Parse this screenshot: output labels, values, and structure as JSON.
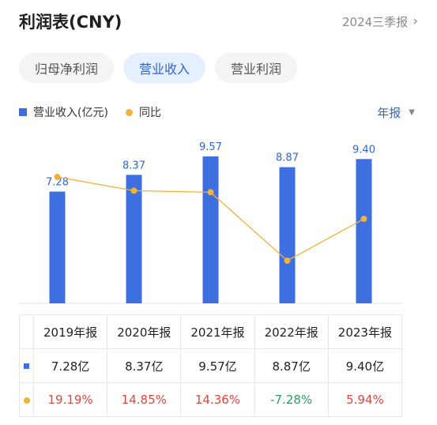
{
  "header": {
    "title": "利润表(CNY)",
    "period": "2024三季报"
  },
  "tabs": [
    {
      "label": "归母净利润",
      "active": false
    },
    {
      "label": "营业收入",
      "active": true
    },
    {
      "label": "营业利润",
      "active": false
    }
  ],
  "legend": {
    "bar_label": "营业收入(亿元)",
    "line_label": "同比"
  },
  "frequency": {
    "label": "年报"
  },
  "colors": {
    "bar": "#3d6fe0",
    "line": "#f2b23a",
    "accent": "#2e66d8",
    "positive": "#e0463f",
    "negative": "#2f9e5a"
  },
  "chart_data": {
    "type": "bar",
    "categories": [
      "2019年报",
      "2020年报",
      "2021年报",
      "2022年报",
      "2023年报"
    ],
    "series": [
      {
        "name": "营业收入(亿元)",
        "type": "bar",
        "values": [
          7.28,
          8.37,
          9.57,
          8.87,
          9.4
        ],
        "labels": [
          "7.28",
          "8.37",
          "9.57",
          "8.87",
          "9.40"
        ]
      },
      {
        "name": "同比",
        "type": "line",
        "values": [
          19.19,
          14.85,
          14.36,
          -7.28,
          5.94
        ]
      }
    ]
  },
  "table": {
    "headers": [
      "2019年报",
      "2020年报",
      "2021年报",
      "2022年报",
      "2023年报"
    ],
    "revenue_row": [
      "7.28亿",
      "8.37亿",
      "9.57亿",
      "8.87亿",
      "9.40亿"
    ],
    "yoy_row": [
      "19.19%",
      "14.85%",
      "14.36%",
      "-7.28%",
      "5.94%"
    ]
  }
}
